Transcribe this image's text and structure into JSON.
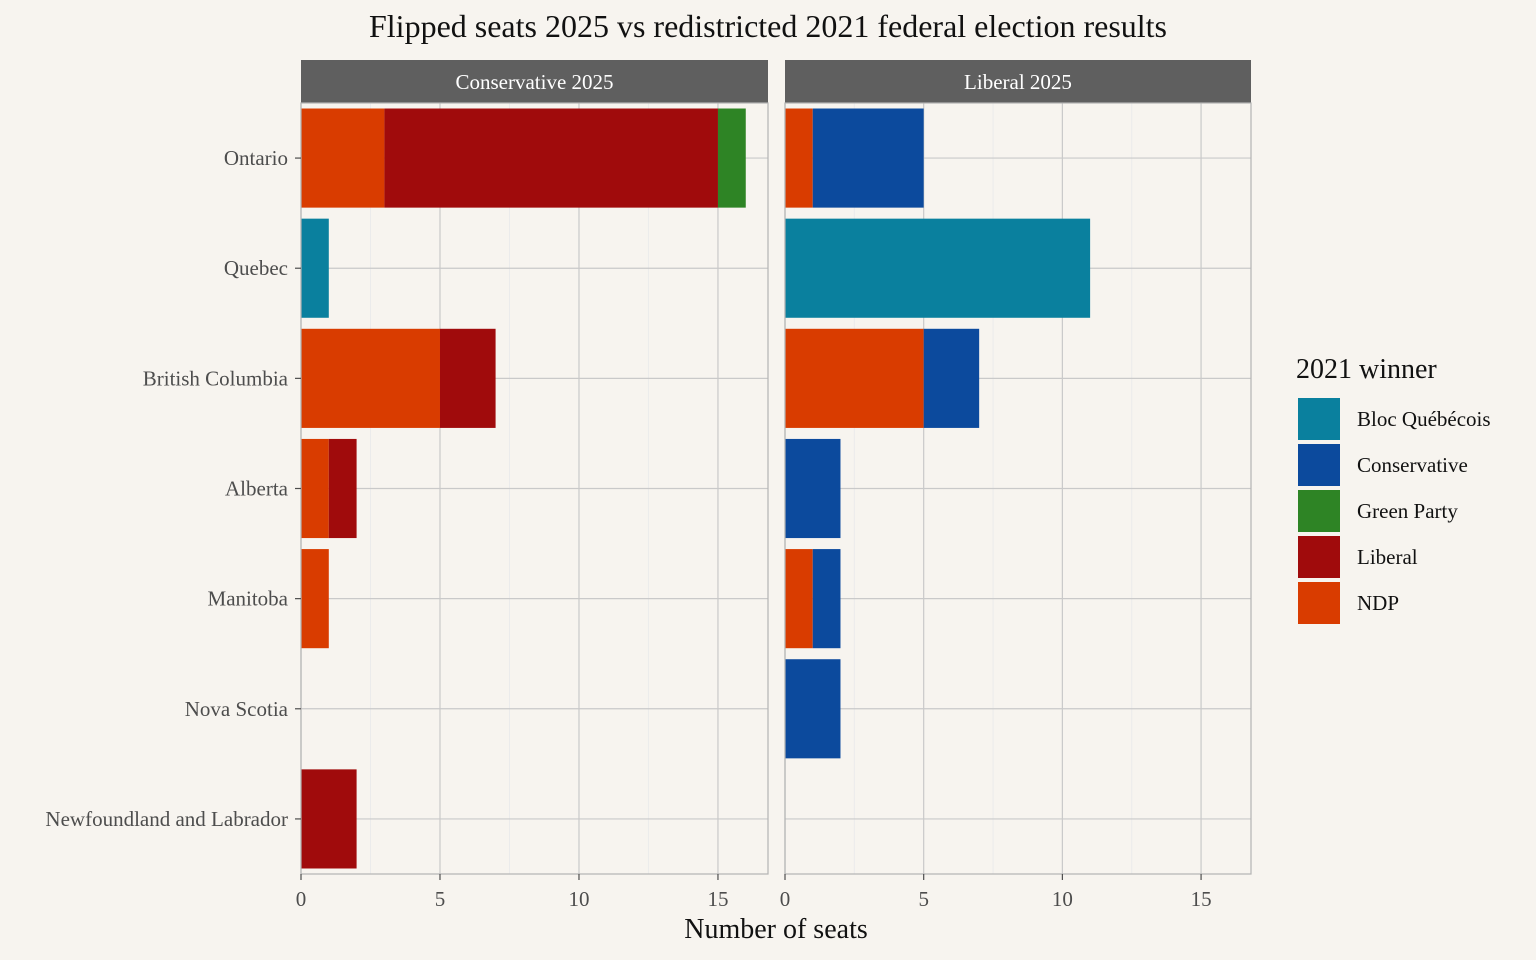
{
  "chart_data": {
    "type": "bar",
    "orientation": "horizontal",
    "stacked": true,
    "title": "Flipped seats 2025 vs redistricted 2021 federal election results",
    "xlabel": "Number of seats",
    "ylabel": "",
    "xlim": [
      0,
      16.8
    ],
    "x_ticks": [
      0,
      5,
      10,
      15
    ],
    "grid": true,
    "legend_placement": "right",
    "legend_title": "2021 winner",
    "categories": [
      "Ontario",
      "Quebec",
      "British Columbia",
      "Alberta",
      "Manitoba",
      "Nova Scotia",
      "Newfoundland and Labrador"
    ],
    "stack_order": [
      "NDP",
      "Liberal",
      "Bloc Québécois",
      "Conservative",
      "Green Party"
    ],
    "legend_order": [
      "Bloc Québécois",
      "Conservative",
      "Green Party",
      "Liberal",
      "NDP"
    ],
    "colors": {
      "Bloc Québécois": "#0a809e",
      "Conservative": "#0c4a9d",
      "Green Party": "#2e8425",
      "Liberal": "#a00b0c",
      "NDP": "#d93c00"
    },
    "panels": [
      {
        "label": "Conservative 2025",
        "series": [
          {
            "name": "NDP",
            "values": [
              3,
              0,
              5,
              1,
              1,
              0,
              0
            ]
          },
          {
            "name": "Liberal",
            "values": [
              12,
              0,
              2,
              1,
              0,
              0,
              2
            ]
          },
          {
            "name": "Bloc Québécois",
            "values": [
              0,
              1,
              0,
              0,
              0,
              0,
              0
            ]
          },
          {
            "name": "Conservative",
            "values": [
              0,
              0,
              0,
              0,
              0,
              0,
              0
            ]
          },
          {
            "name": "Green Party",
            "values": [
              1,
              0,
              0,
              0,
              0,
              0,
              0
            ]
          }
        ]
      },
      {
        "label": "Liberal 2025",
        "series": [
          {
            "name": "NDP",
            "values": [
              1,
              0,
              5,
              0,
              1,
              0,
              0
            ]
          },
          {
            "name": "Liberal",
            "values": [
              0,
              0,
              0,
              0,
              0,
              0,
              0
            ]
          },
          {
            "name": "Bloc Québécois",
            "values": [
              0,
              11,
              0,
              0,
              0,
              0,
              0
            ]
          },
          {
            "name": "Conservative",
            "values": [
              4,
              0,
              2,
              2,
              1,
              2,
              0
            ]
          },
          {
            "name": "Green Party",
            "values": [
              0,
              0,
              0,
              0,
              0,
              0,
              0
            ]
          }
        ]
      }
    ]
  }
}
